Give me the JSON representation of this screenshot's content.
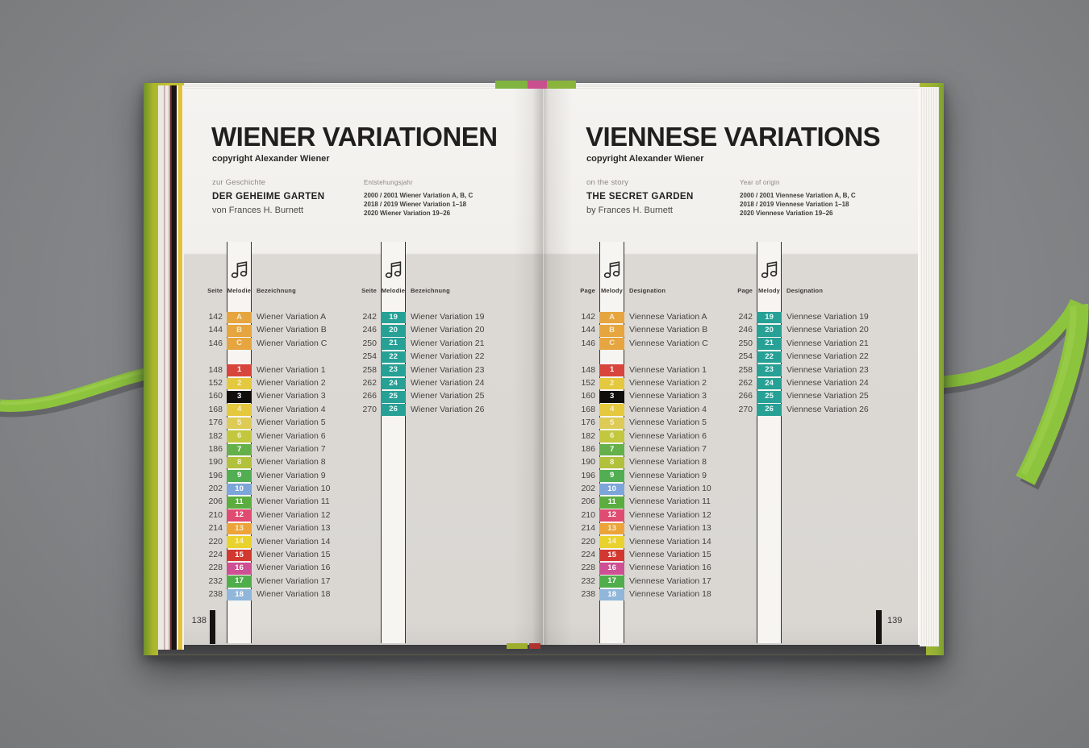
{
  "colors": {
    "desk": "#848689",
    "cover_green": "#b9bd2e",
    "ribbon_green": "#8dc43e",
    "page_white": "#f4f2ee",
    "band_gray": "#dbd8d4",
    "teal_badge": "#27a096",
    "ink": "#232220"
  },
  "icons": {
    "melody_icon": "music-note-icon"
  },
  "left_page": {
    "page_number": "138",
    "title": "WIENER VARIATIONEN",
    "copyright": "copyright Alexander Wiener",
    "story": {
      "label": "zur Geschichte",
      "title": "DER GEHEIME GARTEN",
      "author": "von Frances H. Burnett"
    },
    "origin": {
      "label": "Entstehungsjahr",
      "lines": "2000 / 2001 Wiener Variation A, B, C\n2018 / 2019 Wiener Variation 1–18\n2020 Wiener Variation 19–26"
    },
    "columns": {
      "page": "Seite",
      "melody": "Melodie",
      "designation": "Bezeichnung"
    },
    "groups": [
      {
        "rows": [
          {
            "page": "142",
            "key": "A",
            "color": "#e6a53e",
            "text": "#f6e9cf",
            "label": "Wiener Variation A"
          },
          {
            "page": "144",
            "key": "B",
            "color": "#e6a53e",
            "text": "#f6e9cf",
            "label": "Wiener Variation B"
          },
          {
            "page": "146",
            "key": "C",
            "color": "#e6a53e",
            "text": "#f6e9cf",
            "label": "Wiener Variation C"
          },
          {
            "spacer": true
          },
          {
            "page": "148",
            "key": "1",
            "color": "#d8453c",
            "text": "#ffffff",
            "label": "Wiener Variation 1"
          },
          {
            "page": "152",
            "key": "2",
            "color": "#e4c93e",
            "text": "#f8f0cd",
            "label": "Wiener Variation 2"
          },
          {
            "page": "160",
            "key": "3",
            "color": "#0f0e0d",
            "text": "#ffffff",
            "label": "Wiener Variation 3"
          },
          {
            "page": "168",
            "key": "4",
            "color": "#e4c93e",
            "text": "#f8f0cd",
            "label": "Wiener Variation 4"
          },
          {
            "page": "176",
            "key": "5",
            "color": "#ddcb55",
            "text": "#f8f2d5",
            "label": "Wiener Variation 5"
          },
          {
            "page": "182",
            "key": "6",
            "color": "#c3c73e",
            "text": "#f3f3d2",
            "label": "Wiener Variation 6"
          },
          {
            "page": "186",
            "key": "7",
            "color": "#64b04a",
            "text": "#ffffff",
            "label": "Wiener Variation 7"
          },
          {
            "page": "190",
            "key": "8",
            "color": "#b2c13b",
            "text": "#f3f3d2",
            "label": "Wiener Variation 8"
          },
          {
            "page": "196",
            "key": "9",
            "color": "#52ae52",
            "text": "#ffffff",
            "label": "Wiener Variation 9"
          },
          {
            "page": "202",
            "key": "10",
            "color": "#7ca6d9",
            "text": "#ffffff",
            "label": "Wiener Variation 10"
          },
          {
            "page": "206",
            "key": "11",
            "color": "#5cad40",
            "text": "#ffffff",
            "label": "Wiener Variation 11"
          },
          {
            "page": "210",
            "key": "12",
            "color": "#e04b72",
            "text": "#ffffff",
            "label": "Wiener Variation 12"
          },
          {
            "page": "214",
            "key": "13",
            "color": "#eca43a",
            "text": "#faeed2",
            "label": "Wiener Variation 13"
          },
          {
            "page": "220",
            "key": "14",
            "color": "#ead22e",
            "text": "#f8f2cc",
            "label": "Wiener Variation 14"
          },
          {
            "page": "224",
            "key": "15",
            "color": "#d23730",
            "text": "#ffffff",
            "label": "Wiener Variation 15"
          },
          {
            "page": "228",
            "key": "16",
            "color": "#ce4f93",
            "text": "#ffffff",
            "label": "Wiener Variation 16"
          },
          {
            "page": "232",
            "key": "17",
            "color": "#4fae4b",
            "text": "#ffffff",
            "label": "Wiener Variation 17"
          },
          {
            "page": "238",
            "key": "18",
            "color": "#90b6da",
            "text": "#ffffff",
            "label": "Wiener Variation 18"
          }
        ]
      },
      {
        "rows": [
          {
            "page": "242",
            "key": "19",
            "color": "#27a096",
            "text": "#eafaf8",
            "label": "Wiener Variation 19"
          },
          {
            "page": "246",
            "key": "20",
            "color": "#27a096",
            "text": "#eafaf8",
            "label": "Wiener Variation 20"
          },
          {
            "page": "250",
            "key": "21",
            "color": "#27a096",
            "text": "#eafaf8",
            "label": "Wiener Variation 21"
          },
          {
            "page": "254",
            "key": "22",
            "color": "#27a096",
            "text": "#eafaf8",
            "label": "Wiener Variation 22"
          },
          {
            "page": "258",
            "key": "23",
            "color": "#27a096",
            "text": "#eafaf8",
            "label": "Wiener Variation 23"
          },
          {
            "page": "262",
            "key": "24",
            "color": "#27a096",
            "text": "#eafaf8",
            "label": "Wiener Variation 24"
          },
          {
            "page": "266",
            "key": "25",
            "color": "#27a096",
            "text": "#eafaf8",
            "label": "Wiener Variation 25"
          },
          {
            "page": "270",
            "key": "26",
            "color": "#27a096",
            "text": "#eafaf8",
            "label": "Wiener Variation 26"
          }
        ]
      }
    ]
  },
  "right_page": {
    "page_number": "139",
    "title": "VIENNESE VARIATIONS",
    "copyright": "copyright Alexander Wiener",
    "story": {
      "label": "on the story",
      "title": "THE SECRET GARDEN",
      "author": "by Frances H. Burnett"
    },
    "origin": {
      "label": "Year of origin",
      "lines": "2000 / 2001 Viennese Variation A, B, C\n2018 / 2019 Viennese Variation 1–18\n2020 Viennese Variation 19–26"
    },
    "columns": {
      "page": "Page",
      "melody": "Melody",
      "designation": "Designation"
    },
    "groups": [
      {
        "rows": [
          {
            "page": "142",
            "key": "A",
            "color": "#e6a53e",
            "text": "#f6e9cf",
            "label": "Viennese Variation A"
          },
          {
            "page": "144",
            "key": "B",
            "color": "#e6a53e",
            "text": "#f6e9cf",
            "label": "Viennese Variation B"
          },
          {
            "page": "146",
            "key": "C",
            "color": "#e6a53e",
            "text": "#f6e9cf",
            "label": "Viennese Variation C"
          },
          {
            "spacer": true
          },
          {
            "page": "148",
            "key": "1",
            "color": "#d8453c",
            "text": "#ffffff",
            "label": "Viennese Variation 1"
          },
          {
            "page": "152",
            "key": "2",
            "color": "#e4c93e",
            "text": "#f8f0cd",
            "label": "Viennese Variation 2"
          },
          {
            "page": "160",
            "key": "3",
            "color": "#0f0e0d",
            "text": "#ffffff",
            "label": "Viennese Variation 3"
          },
          {
            "page": "168",
            "key": "4",
            "color": "#e4c93e",
            "text": "#f8f0cd",
            "label": "Viennese Variation 4"
          },
          {
            "page": "176",
            "key": "5",
            "color": "#ddcb55",
            "text": "#f8f2d5",
            "label": "Viennese Variation 5"
          },
          {
            "page": "182",
            "key": "6",
            "color": "#c3c73e",
            "text": "#f3f3d2",
            "label": "Viennese Variation 6"
          },
          {
            "page": "186",
            "key": "7",
            "color": "#64b04a",
            "text": "#ffffff",
            "label": "Viennese Variation 7"
          },
          {
            "page": "190",
            "key": "8",
            "color": "#b2c13b",
            "text": "#f3f3d2",
            "label": "Viennese Variation 8"
          },
          {
            "page": "196",
            "key": "9",
            "color": "#52ae52",
            "text": "#ffffff",
            "label": "Viennese Variation 9"
          },
          {
            "page": "202",
            "key": "10",
            "color": "#7ca6d9",
            "text": "#ffffff",
            "label": "Viennese Variation 10"
          },
          {
            "page": "206",
            "key": "11",
            "color": "#5cad40",
            "text": "#ffffff",
            "label": "Viennese Variation 11"
          },
          {
            "page": "210",
            "key": "12",
            "color": "#e04b72",
            "text": "#ffffff",
            "label": "Viennese Variation 12"
          },
          {
            "page": "214",
            "key": "13",
            "color": "#eca43a",
            "text": "#faeed2",
            "label": "Viennese Variation 13"
          },
          {
            "page": "220",
            "key": "14",
            "color": "#ead22e",
            "text": "#f8f2cc",
            "label": "Viennese Variation 14"
          },
          {
            "page": "224",
            "key": "15",
            "color": "#d23730",
            "text": "#ffffff",
            "label": "Viennese Variation 15"
          },
          {
            "page": "228",
            "key": "16",
            "color": "#ce4f93",
            "text": "#ffffff",
            "label": "Viennese Variation 16"
          },
          {
            "page": "232",
            "key": "17",
            "color": "#4fae4b",
            "text": "#ffffff",
            "label": "Viennese Variation 17"
          },
          {
            "page": "238",
            "key": "18",
            "color": "#90b6da",
            "text": "#ffffff",
            "label": "Viennese Variation 18"
          }
        ]
      },
      {
        "rows": [
          {
            "page": "242",
            "key": "19",
            "color": "#27a096",
            "text": "#eafaf8",
            "label": "Viennese Variation 19"
          },
          {
            "page": "246",
            "key": "20",
            "color": "#27a096",
            "text": "#eafaf8",
            "label": "Viennese Variation 20"
          },
          {
            "page": "250",
            "key": "21",
            "color": "#27a096",
            "text": "#eafaf8",
            "label": "Viennese Variation 21"
          },
          {
            "page": "254",
            "key": "22",
            "color": "#27a096",
            "text": "#eafaf8",
            "label": "Viennese Variation 22"
          },
          {
            "page": "258",
            "key": "23",
            "color": "#27a096",
            "text": "#eafaf8",
            "label": "Viennese Variation 23"
          },
          {
            "page": "262",
            "key": "24",
            "color": "#27a096",
            "text": "#eafaf8",
            "label": "Viennese Variation 24"
          },
          {
            "page": "266",
            "key": "25",
            "color": "#27a096",
            "text": "#eafaf8",
            "label": "Viennese Variation 25"
          },
          {
            "page": "270",
            "key": "26",
            "color": "#27a096",
            "text": "#eafaf8",
            "label": "Viennese Variation 26"
          }
        ]
      }
    ]
  }
}
